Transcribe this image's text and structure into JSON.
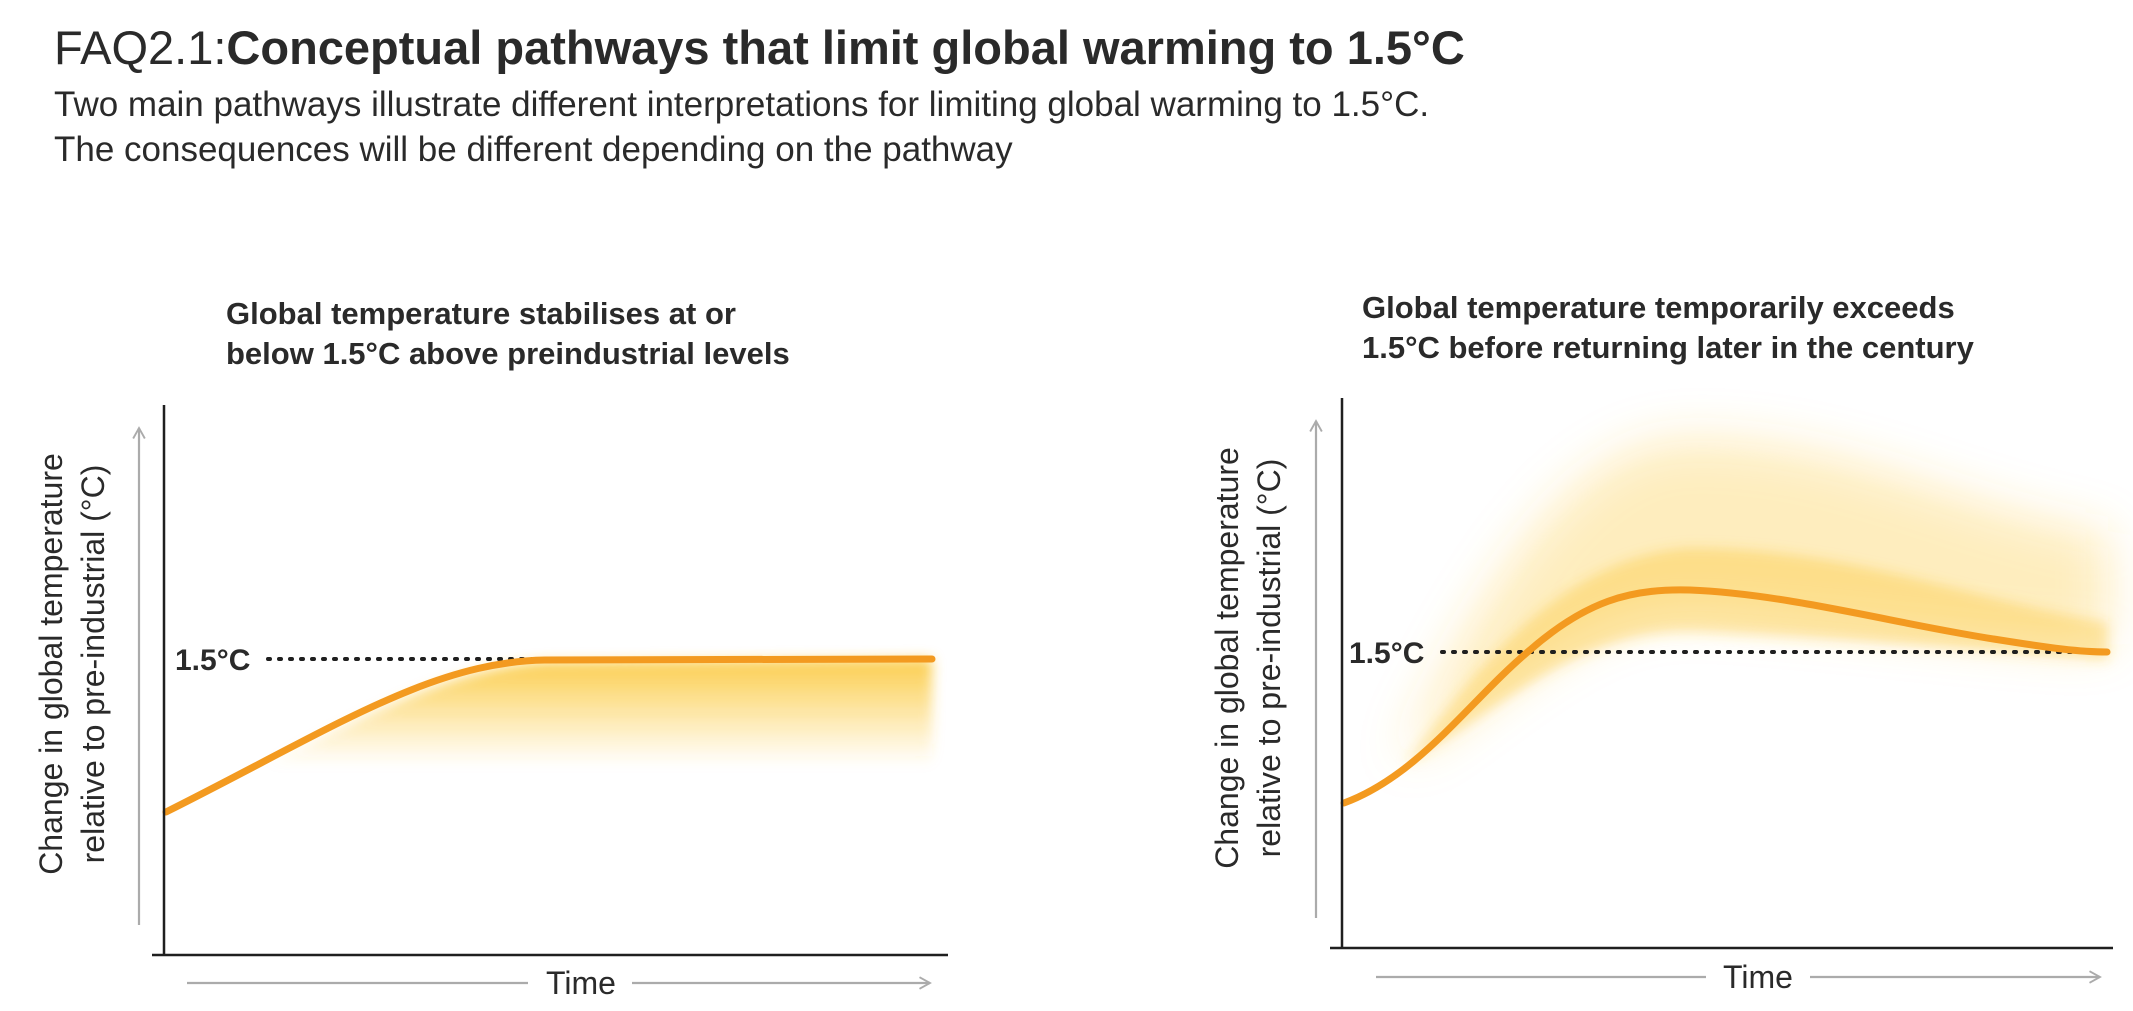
{
  "header": {
    "prefix": "FAQ2.1:",
    "title": "Conceptual pathways that limit global warming to 1.5°C",
    "subtitle_lines": [
      "Two main pathways illustrate different interpretations for limiting global warming to 1.5°C.",
      "The consequences will be different depending on the pathway"
    ]
  },
  "colors": {
    "curve": "#f39a20",
    "band": "#fbc632",
    "axis": "#1f1f1f",
    "arrow": "#ababab",
    "text": "#2a2a2a"
  },
  "panels": [
    {
      "title_lines": [
        "Global temperature stabilises at or",
        "below 1.5°C above preindustrial levels"
      ],
      "threshold_label": "1.5°C",
      "y_label_lines": [
        "Change in global temperature",
        "relative to pre-industrial (°C)"
      ],
      "x_label": "Time"
    },
    {
      "title_lines": [
        "Global temperature temporarily exceeds",
        "1.5°C before returning later in the century"
      ],
      "threshold_label": "1.5°C",
      "y_label_lines": [
        "Change in global temperature",
        "relative to pre-industrial (°C)"
      ],
      "x_label": "Time"
    }
  ]
}
